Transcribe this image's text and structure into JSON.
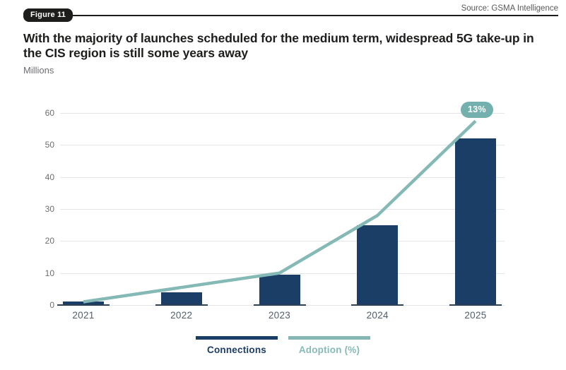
{
  "figure_label": "Figure 11",
  "source": "Source: GSMA Intelligence",
  "title": "With the majority of launches scheduled for the medium term, widespread 5G take-up in the CIS region is still some years away",
  "units_label": "Millions",
  "chart_data": {
    "type": "bar",
    "subtype": "bar+line combo",
    "title": "With the majority of launches scheduled for the medium term, widespread 5G take-up in the CIS region is still some years away",
    "ylabel": "Millions",
    "xlabel": "",
    "categories": [
      "2021",
      "2022",
      "2023",
      "2024",
      "2025"
    ],
    "series": [
      {
        "name": "Connections",
        "type": "bar",
        "color": "#1b3e66",
        "values": [
          1,
          4,
          9.5,
          25,
          52
        ]
      },
      {
        "name": "Adoption (%)",
        "type": "line",
        "color": "#84b9b6",
        "values_on_left_axis": [
          1,
          5.5,
          10,
          28,
          57.5
        ],
        "end_label": "13%",
        "end_label_color": "#74b1ae"
      }
    ],
    "ylim": [
      0,
      60
    ],
    "yticks": [
      0,
      10,
      20,
      30,
      40,
      50,
      60
    ],
    "grid": true,
    "legend_position": "bottom"
  },
  "legend": {
    "items": [
      {
        "label": "Connections",
        "color": "#1b3e66",
        "text_color": "#1d3c68"
      },
      {
        "label": "Adoption (%)",
        "color": "#85b8b5",
        "text_color": "#86bab7"
      }
    ]
  },
  "colors": {
    "bar_navy": "#1b3e66",
    "line_teal": "#84b9b6",
    "pill_teal": "#74b1ae",
    "gridline": "#e4e5e6",
    "header_black": "#1d1d1b",
    "grey_text": "#6d6e71",
    "axis_label": "#515e6d"
  }
}
